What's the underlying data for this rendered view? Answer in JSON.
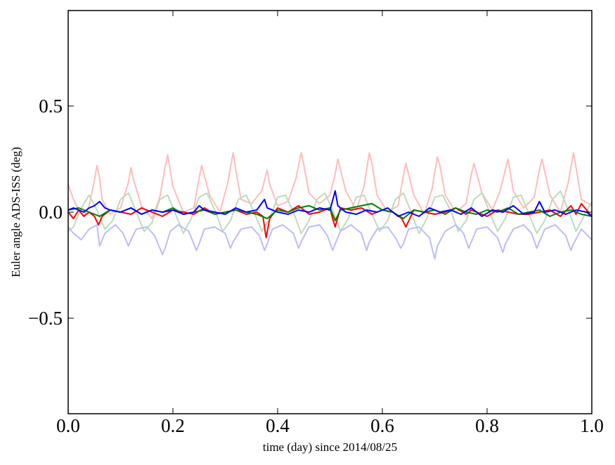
{
  "chart_data": {
    "type": "line",
    "title": "",
    "xlabel": "time (day) since 2014/08/25",
    "ylabel": "Euler angle ADS-ISS (deg)",
    "xlim": [
      0.0,
      1.0
    ],
    "ylim": [
      -0.95,
      0.95
    ],
    "grid": false,
    "legend": "none",
    "x_ticks": [
      0.0,
      0.2,
      0.4,
      0.6,
      0.8,
      1.0
    ],
    "x_tick_labels": [
      "0.0",
      "0.2",
      "0.4",
      "0.6",
      "0.8",
      "1.0"
    ],
    "y_ticks": [
      -0.5,
      0.0,
      0.5
    ],
    "y_tick_labels": [
      "−0.5",
      "0.0",
      "0.5"
    ],
    "series": [
      {
        "color": "#ffbcbc",
        "style": "faint",
        "x": [
          0.0,
          0.01,
          0.02,
          0.03,
          0.04,
          0.05,
          0.055,
          0.06,
          0.065,
          0.08,
          0.1,
          0.115,
          0.12,
          0.125,
          0.14,
          0.16,
          0.175,
          0.185,
          0.19,
          0.2,
          0.22,
          0.24,
          0.25,
          0.255,
          0.27,
          0.29,
          0.305,
          0.315,
          0.32,
          0.33,
          0.35,
          0.37,
          0.38,
          0.385,
          0.4,
          0.42,
          0.435,
          0.445,
          0.45,
          0.46,
          0.48,
          0.5,
          0.51,
          0.515,
          0.53,
          0.55,
          0.565,
          0.575,
          0.58,
          0.59,
          0.61,
          0.63,
          0.64,
          0.645,
          0.66,
          0.68,
          0.695,
          0.705,
          0.71,
          0.72,
          0.74,
          0.76,
          0.77,
          0.775,
          0.79,
          0.81,
          0.825,
          0.835,
          0.84,
          0.85,
          0.87,
          0.89,
          0.9,
          0.905,
          0.92,
          0.94,
          0.955,
          0.965,
          0.97,
          0.98,
          1.0
        ],
        "y": [
          0.13,
          0.06,
          0.01,
          -0.02,
          0.03,
          0.15,
          0.22,
          0.16,
          0.06,
          -0.01,
          0.02,
          0.14,
          0.21,
          0.15,
          0.03,
          -0.03,
          0.07,
          0.21,
          0.27,
          0.12,
          0.0,
          0.02,
          0.16,
          0.22,
          0.08,
          0.0,
          0.14,
          0.28,
          0.2,
          0.06,
          0.04,
          0.1,
          0.2,
          0.13,
          0.03,
          0.05,
          0.16,
          0.28,
          0.22,
          0.09,
          0.04,
          0.08,
          0.18,
          0.25,
          0.1,
          0.01,
          0.12,
          0.28,
          0.23,
          0.08,
          0.0,
          0.03,
          0.17,
          0.23,
          0.08,
          -0.01,
          0.11,
          0.26,
          0.22,
          0.08,
          0.0,
          0.04,
          0.18,
          0.23,
          0.09,
          0.01,
          0.1,
          0.2,
          0.25,
          0.1,
          0.02,
          0.07,
          0.2,
          0.25,
          0.08,
          0.0,
          0.14,
          0.28,
          0.21,
          0.06,
          0.03
        ]
      },
      {
        "color": "#bcdcbc",
        "style": "faint",
        "x": [
          0.0,
          0.01,
          0.025,
          0.04,
          0.055,
          0.07,
          0.085,
          0.1,
          0.115,
          0.13,
          0.145,
          0.16,
          0.175,
          0.19,
          0.205,
          0.22,
          0.235,
          0.25,
          0.265,
          0.28,
          0.295,
          0.31,
          0.325,
          0.34,
          0.355,
          0.37,
          0.385,
          0.4,
          0.415,
          0.43,
          0.445,
          0.46,
          0.475,
          0.49,
          0.505,
          0.52,
          0.535,
          0.55,
          0.565,
          0.58,
          0.595,
          0.61,
          0.625,
          0.64,
          0.655,
          0.67,
          0.685,
          0.7,
          0.715,
          0.73,
          0.745,
          0.76,
          0.775,
          0.79,
          0.805,
          0.82,
          0.835,
          0.85,
          0.865,
          0.88,
          0.895,
          0.91,
          0.925,
          0.94,
          0.955,
          0.97,
          0.985,
          1.0
        ],
        "y": [
          -0.09,
          -0.07,
          0.02,
          0.08,
          0.01,
          -0.08,
          -0.04,
          0.06,
          0.09,
          0.0,
          -0.09,
          -0.05,
          0.06,
          0.08,
          -0.01,
          -0.1,
          -0.03,
          0.07,
          0.09,
          0.01,
          -0.09,
          -0.04,
          0.06,
          0.08,
          0.0,
          -0.09,
          -0.03,
          0.07,
          0.08,
          0.0,
          -0.1,
          -0.04,
          0.06,
          0.09,
          0.01,
          -0.09,
          -0.03,
          0.07,
          0.08,
          -0.01,
          -0.09,
          -0.04,
          0.06,
          0.09,
          0.0,
          -0.1,
          -0.03,
          0.07,
          0.08,
          0.01,
          -0.09,
          -0.04,
          0.06,
          0.09,
          0.0,
          -0.09,
          -0.03,
          0.07,
          0.08,
          -0.01,
          -0.1,
          -0.04,
          0.06,
          0.1,
          0.01,
          -0.09,
          -0.02,
          0.05
        ]
      },
      {
        "color": "#bcbcfc",
        "style": "faint",
        "x": [
          0.0,
          0.01,
          0.025,
          0.04,
          0.055,
          0.06,
          0.07,
          0.09,
          0.105,
          0.115,
          0.12,
          0.13,
          0.15,
          0.165,
          0.18,
          0.185,
          0.195,
          0.21,
          0.23,
          0.245,
          0.25,
          0.26,
          0.28,
          0.3,
          0.31,
          0.315,
          0.33,
          0.35,
          0.365,
          0.375,
          0.38,
          0.39,
          0.41,
          0.43,
          0.44,
          0.445,
          0.46,
          0.48,
          0.495,
          0.505,
          0.51,
          0.52,
          0.54,
          0.56,
          0.57,
          0.575,
          0.59,
          0.61,
          0.625,
          0.635,
          0.64,
          0.65,
          0.67,
          0.69,
          0.7,
          0.705,
          0.72,
          0.74,
          0.755,
          0.765,
          0.77,
          0.78,
          0.8,
          0.82,
          0.83,
          0.835,
          0.85,
          0.87,
          0.885,
          0.895,
          0.9,
          0.91,
          0.93,
          0.95,
          0.96,
          0.965,
          0.98,
          1.0
        ],
        "y": [
          -0.07,
          -0.1,
          -0.13,
          -0.08,
          -0.06,
          -0.16,
          -0.1,
          -0.06,
          -0.1,
          -0.16,
          -0.13,
          -0.08,
          -0.07,
          -0.11,
          -0.2,
          -0.17,
          -0.09,
          -0.06,
          -0.09,
          -0.18,
          -0.15,
          -0.08,
          -0.07,
          -0.1,
          -0.17,
          -0.14,
          -0.08,
          -0.07,
          -0.11,
          -0.18,
          -0.15,
          -0.08,
          -0.06,
          -0.1,
          -0.17,
          -0.14,
          -0.07,
          -0.06,
          -0.11,
          -0.18,
          -0.15,
          -0.09,
          -0.06,
          -0.1,
          -0.18,
          -0.14,
          -0.08,
          -0.07,
          -0.12,
          -0.17,
          -0.15,
          -0.08,
          -0.07,
          -0.12,
          -0.22,
          -0.16,
          -0.09,
          -0.06,
          -0.1,
          -0.17,
          -0.14,
          -0.08,
          -0.07,
          -0.12,
          -0.19,
          -0.15,
          -0.08,
          -0.06,
          -0.1,
          -0.17,
          -0.14,
          -0.08,
          -0.06,
          -0.11,
          -0.18,
          -0.15,
          -0.08,
          -0.13
        ]
      },
      {
        "color": "#ff0000",
        "style": "solid",
        "x": [
          0.0,
          0.01,
          0.02,
          0.03,
          0.04,
          0.05,
          0.058,
          0.065,
          0.08,
          0.1,
          0.12,
          0.14,
          0.16,
          0.18,
          0.2,
          0.22,
          0.24,
          0.26,
          0.28,
          0.3,
          0.32,
          0.34,
          0.36,
          0.372,
          0.378,
          0.385,
          0.4,
          0.42,
          0.44,
          0.46,
          0.48,
          0.5,
          0.505,
          0.51,
          0.52,
          0.54,
          0.56,
          0.58,
          0.6,
          0.62,
          0.637,
          0.645,
          0.66,
          0.68,
          0.7,
          0.72,
          0.74,
          0.76,
          0.77,
          0.78,
          0.8,
          0.82,
          0.84,
          0.86,
          0.88,
          0.9,
          0.92,
          0.94,
          0.96,
          0.97,
          0.98,
          1.0
        ],
        "y": [
          0.0,
          -0.03,
          0.01,
          -0.02,
          0.0,
          -0.02,
          -0.06,
          -0.02,
          0.01,
          0.0,
          -0.01,
          0.02,
          0.0,
          -0.02,
          0.01,
          0.0,
          -0.01,
          0.02,
          -0.01,
          0.0,
          0.01,
          -0.01,
          0.0,
          -0.02,
          -0.12,
          -0.03,
          0.02,
          0.0,
          0.03,
          -0.01,
          0.0,
          0.02,
          -0.03,
          -0.07,
          0.02,
          0.01,
          0.02,
          -0.01,
          0.01,
          0.0,
          -0.03,
          -0.07,
          0.01,
          0.0,
          -0.01,
          0.0,
          0.02,
          -0.01,
          0.01,
          0.0,
          -0.02,
          0.01,
          0.0,
          -0.01,
          -0.01,
          0.0,
          0.01,
          -0.02,
          0.03,
          -0.01,
          0.04,
          -0.02
        ]
      },
      {
        "color": "#008000",
        "style": "solid",
        "x": [
          0.0,
          0.02,
          0.04,
          0.06,
          0.08,
          0.1,
          0.12,
          0.14,
          0.16,
          0.18,
          0.2,
          0.22,
          0.24,
          0.26,
          0.28,
          0.3,
          0.32,
          0.34,
          0.36,
          0.38,
          0.4,
          0.42,
          0.44,
          0.46,
          0.48,
          0.5,
          0.51,
          0.52,
          0.54,
          0.56,
          0.58,
          0.6,
          0.62,
          0.64,
          0.66,
          0.68,
          0.7,
          0.72,
          0.74,
          0.76,
          0.78,
          0.8,
          0.82,
          0.84,
          0.86,
          0.88,
          0.9,
          0.92,
          0.94,
          0.96,
          0.98,
          1.0
        ],
        "y": [
          0.01,
          0.02,
          0.0,
          -0.02,
          0.01,
          0.0,
          0.02,
          -0.01,
          0.01,
          0.0,
          0.02,
          -0.01,
          0.0,
          0.01,
          -0.01,
          0.0,
          0.01,
          0.0,
          -0.01,
          -0.03,
          0.01,
          0.0,
          0.02,
          0.03,
          0.01,
          0.02,
          -0.04,
          0.01,
          0.02,
          0.03,
          0.04,
          0.01,
          0.0,
          -0.03,
          0.01,
          0.0,
          0.01,
          -0.01,
          0.02,
          0.0,
          -0.01,
          0.01,
          0.0,
          0.02,
          -0.01,
          0.0,
          0.01,
          -0.02,
          0.0,
          0.01,
          -0.01,
          -0.02
        ]
      },
      {
        "color": "#0000ff",
        "style": "solid",
        "x": [
          0.0,
          0.01,
          0.02,
          0.03,
          0.04,
          0.05,
          0.06,
          0.07,
          0.08,
          0.1,
          0.12,
          0.14,
          0.16,
          0.18,
          0.2,
          0.22,
          0.24,
          0.25,
          0.26,
          0.28,
          0.3,
          0.32,
          0.34,
          0.36,
          0.375,
          0.38,
          0.4,
          0.42,
          0.44,
          0.46,
          0.48,
          0.5,
          0.51,
          0.515,
          0.53,
          0.55,
          0.57,
          0.59,
          0.61,
          0.63,
          0.65,
          0.67,
          0.69,
          0.71,
          0.73,
          0.75,
          0.77,
          0.79,
          0.81,
          0.83,
          0.85,
          0.87,
          0.89,
          0.9,
          0.91,
          0.93,
          0.95,
          0.97,
          0.99,
          1.0
        ],
        "y": [
          0.01,
          0.02,
          0.01,
          0.0,
          0.02,
          0.03,
          0.05,
          0.02,
          0.01,
          0.0,
          0.02,
          -0.01,
          0.01,
          0.0,
          0.01,
          -0.01,
          0.0,
          0.03,
          0.01,
          0.0,
          -0.01,
          0.02,
          0.0,
          0.01,
          0.06,
          0.02,
          0.0,
          -0.01,
          0.01,
          0.0,
          0.02,
          0.01,
          0.1,
          0.03,
          0.0,
          -0.01,
          0.01,
          0.0,
          0.02,
          -0.02,
          0.0,
          -0.02,
          0.02,
          0.0,
          0.01,
          -0.01,
          0.02,
          -0.02,
          0.01,
          0.0,
          0.03,
          -0.01,
          0.0,
          0.05,
          0.0,
          0.01,
          -0.01,
          0.01,
          0.0,
          -0.02
        ]
      }
    ]
  }
}
